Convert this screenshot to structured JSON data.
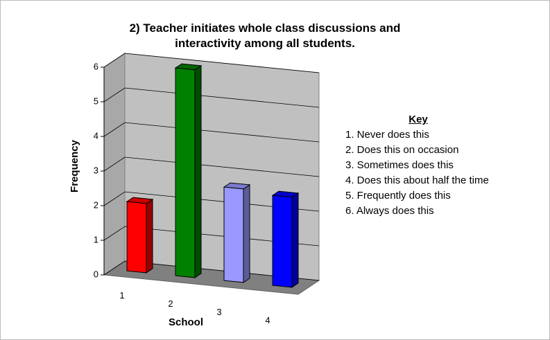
{
  "chart_data": {
    "type": "bar3d",
    "title": "2) Teacher initiates whole class discussions and interactivity among all students.",
    "x_label": "School",
    "y_label": "Frequency",
    "categories": [
      "1",
      "2",
      "3",
      "4"
    ],
    "values": [
      2,
      6,
      2.7,
      2.6
    ],
    "colors": [
      "#ff0000",
      "#008000",
      "#9999ff",
      "#0000ff"
    ],
    "ylim": [
      0,
      6
    ],
    "yticks": [
      0,
      1,
      2,
      3,
      4,
      5,
      6
    ],
    "grid": true,
    "key": {
      "title": "Key",
      "items": [
        "1. Never does this",
        "2. Does this on occasion",
        "3. Sometimes does this",
        "4. Does this about half the time",
        "5. Frequently does this",
        "6. Always does this"
      ]
    }
  }
}
